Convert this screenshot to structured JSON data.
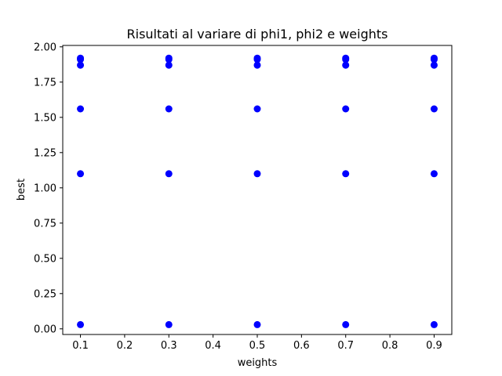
{
  "chart_data": {
    "type": "scatter",
    "title": "Risultati al variare di phi1, phi2 e weights",
    "xlabel": "weights",
    "ylabel": "best",
    "xlim": [
      0.06,
      0.94
    ],
    "ylim": [
      -0.04,
      2.01
    ],
    "xticks": [
      0.1,
      0.2,
      0.3,
      0.4,
      0.5,
      0.6,
      0.7,
      0.8,
      0.9
    ],
    "xtick_labels": [
      "0.1",
      "0.2",
      "0.3",
      "0.4",
      "0.5",
      "0.6",
      "0.7",
      "0.8",
      "0.9"
    ],
    "yticks": [
      0.0,
      0.25,
      0.5,
      0.75,
      1.0,
      1.25,
      1.5,
      1.75,
      2.0
    ],
    "ytick_labels": [
      "0.00",
      "0.25",
      "0.50",
      "0.75",
      "1.00",
      "1.25",
      "1.50",
      "1.75",
      "2.00"
    ],
    "grid": false,
    "marker_color": "#0000ff",
    "x": [
      0.1,
      0.1,
      0.1,
      0.1,
      0.1,
      0.1,
      0.3,
      0.3,
      0.3,
      0.3,
      0.3,
      0.3,
      0.5,
      0.5,
      0.5,
      0.5,
      0.5,
      0.5,
      0.7,
      0.7,
      0.7,
      0.7,
      0.7,
      0.7,
      0.9,
      0.9,
      0.9,
      0.9,
      0.9,
      0.9
    ],
    "y": [
      1.92,
      1.87,
      1.56,
      1.1,
      0.03,
      1.91,
      1.92,
      1.87,
      1.56,
      1.1,
      0.03,
      1.91,
      1.92,
      1.87,
      1.56,
      1.1,
      0.03,
      1.91,
      1.92,
      1.87,
      1.56,
      1.1,
      0.03,
      1.91,
      1.92,
      1.87,
      1.56,
      1.1,
      0.03,
      1.91
    ]
  }
}
